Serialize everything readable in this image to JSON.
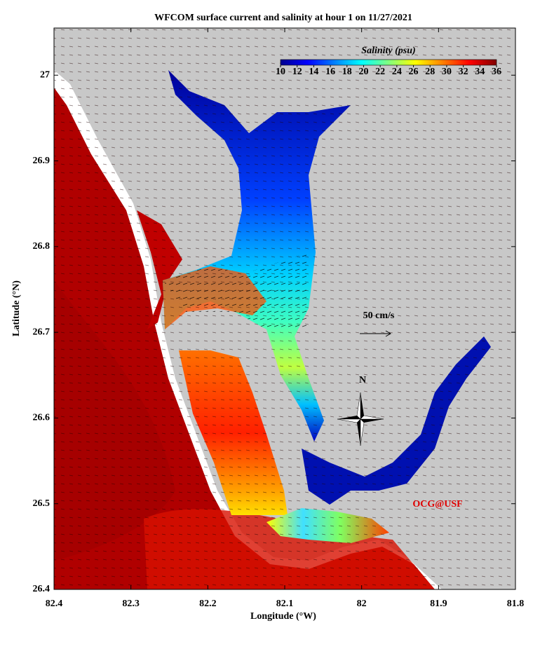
{
  "chart_data": {
    "type": "map",
    "title": "WFCOM surface current and salinity at hour 1 on 11/27/2021",
    "x_label": "Longitude (°W)",
    "y_label": "Latitude (°N)",
    "xlim": [
      82.4,
      81.8
    ],
    "xticks": [
      82.4,
      82.3,
      82.2,
      82.1,
      82.0,
      81.9,
      81.8
    ],
    "ylim": [
      26.4,
      27.055
    ],
    "yticks": [
      26.4,
      26.5,
      26.6,
      26.7,
      26.8,
      26.9,
      27.0
    ],
    "colorbar": {
      "label": "Salinity (psu)",
      "range": [
        10,
        36
      ],
      "ticks": [
        10,
        12,
        14,
        16,
        18,
        20,
        22,
        24,
        26,
        28,
        30,
        32,
        34,
        36
      ],
      "colors": [
        "#00008f",
        "#0000ff",
        "#0080ff",
        "#00ffff",
        "#80ff80",
        "#ffff00",
        "#ff8000",
        "#ff0000",
        "#800000"
      ]
    },
    "scale_arrow_label": "50 cm/s",
    "compass_label": "N",
    "annotation": "OCG@USF"
  }
}
